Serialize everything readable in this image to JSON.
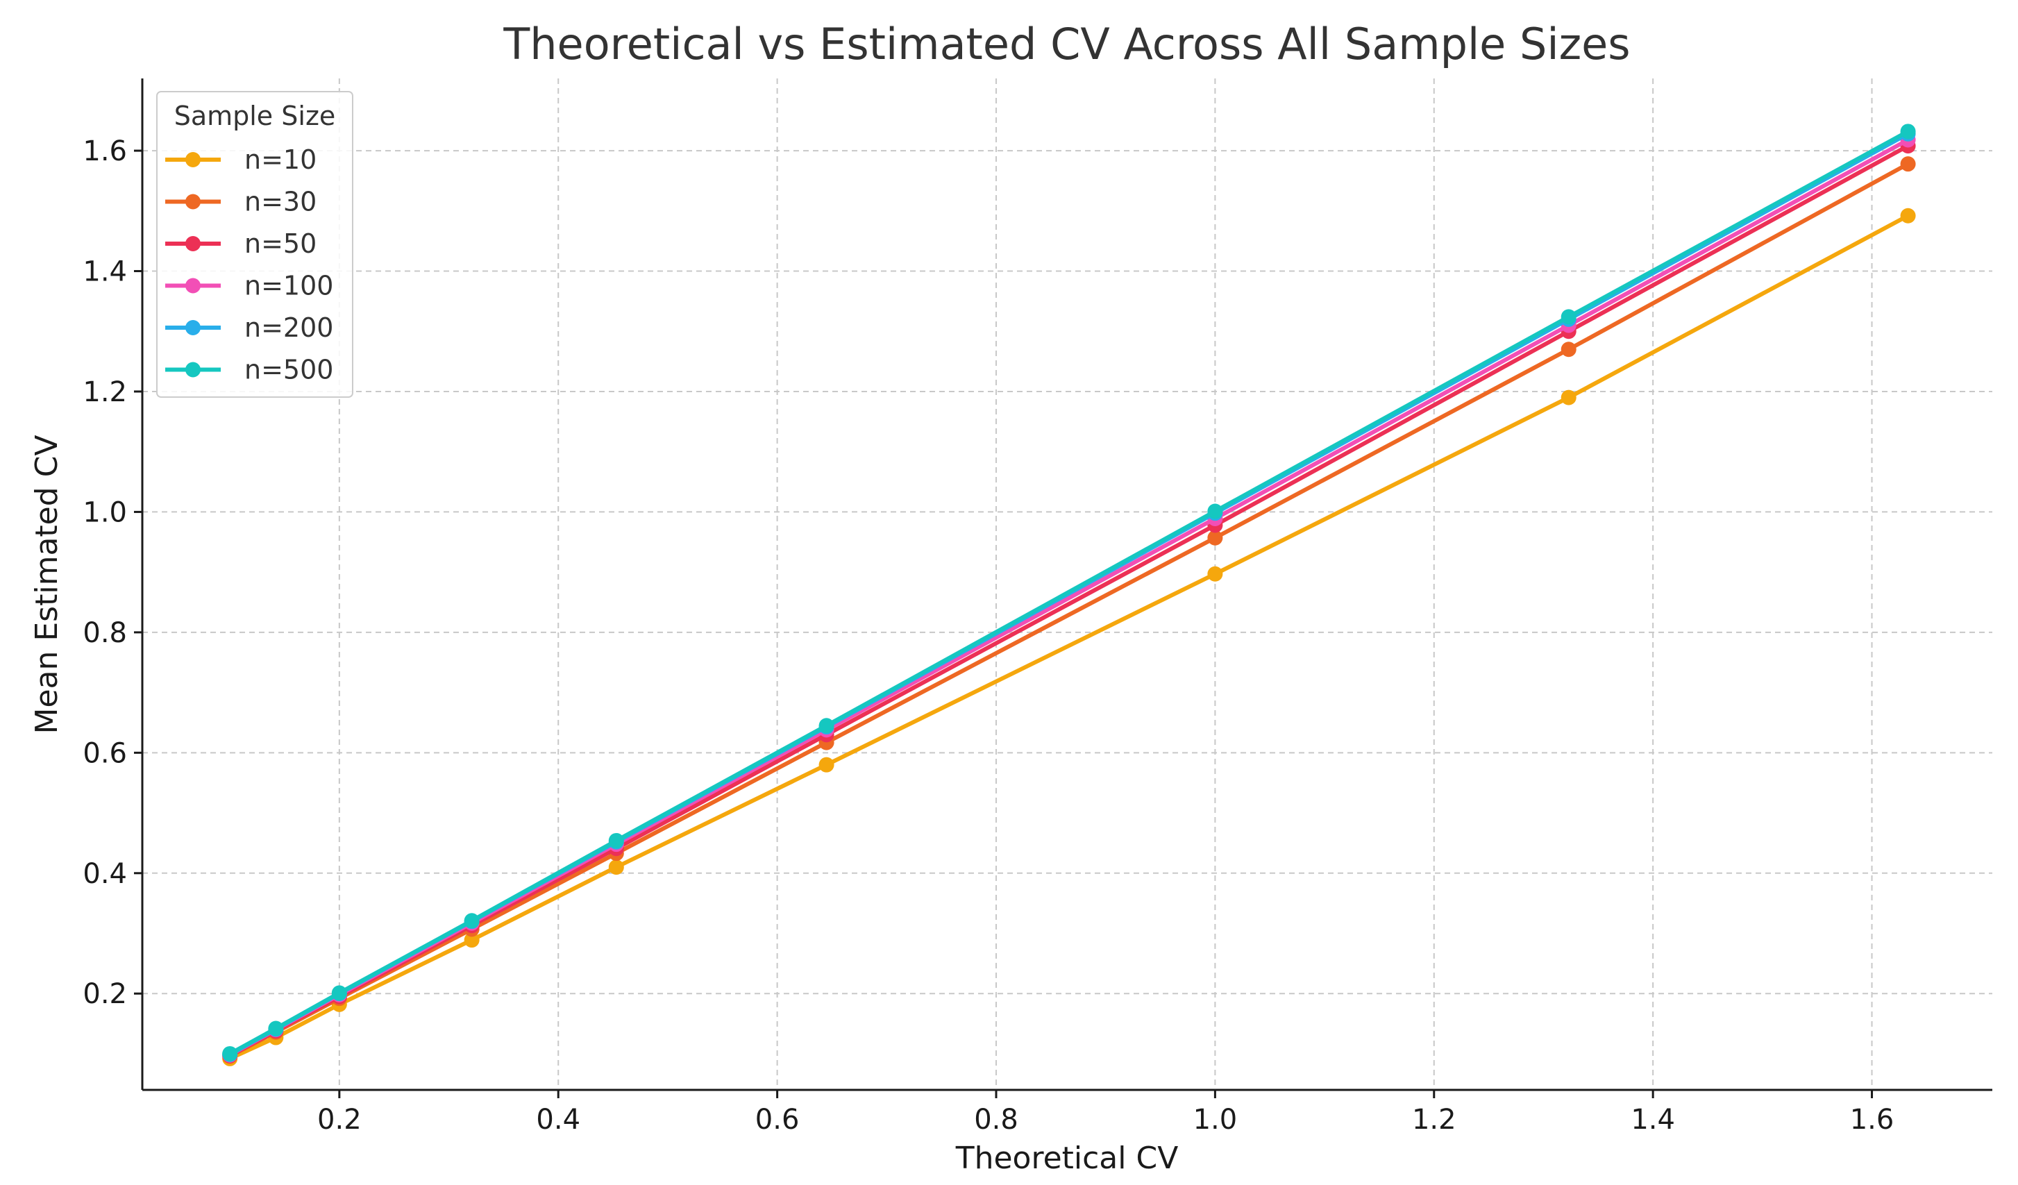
{
  "chart_data": {
    "type": "line",
    "title": "Theoretical vs Estimated CV Across All Sample Sizes",
    "xlabel": "Theoretical CV",
    "ylabel": "Mean Estimated CV",
    "xlim": [
      0.02,
      1.71
    ],
    "ylim": [
      0.04,
      1.72
    ],
    "xticks": [
      0.2,
      0.4,
      0.6,
      0.8,
      1.0,
      1.2,
      1.4,
      1.6
    ],
    "yticks": [
      0.2,
      0.4,
      0.6,
      0.8,
      1.0,
      1.2,
      1.4,
      1.6
    ],
    "tick_labels_x": [
      "0.2",
      "0.4",
      "0.6",
      "0.8",
      "1.0",
      "1.2",
      "1.4",
      "1.6"
    ],
    "tick_labels_y": [
      "0.2",
      "0.4",
      "0.6",
      "0.8",
      "1.0",
      "1.2",
      "1.4",
      "1.6"
    ],
    "grid": true,
    "legend": {
      "title": "Sample Size",
      "position": "top-left"
    },
    "x": [
      0.1,
      0.142,
      0.2,
      0.321,
      0.453,
      0.645,
      1.0,
      1.323,
      1.633
    ],
    "series": [
      {
        "name": "n=10",
        "color": "#F5A70D",
        "values": [
          0.092,
          0.127,
          0.182,
          0.289,
          0.41,
          0.58,
          0.897,
          1.19,
          1.492
        ]
      },
      {
        "name": "n=30",
        "color": "#EE6823",
        "values": [
          0.096,
          0.136,
          0.192,
          0.307,
          0.433,
          0.617,
          0.957,
          1.27,
          1.578
        ]
      },
      {
        "name": "n=50",
        "color": "#EC3055",
        "values": [
          0.097,
          0.138,
          0.195,
          0.313,
          0.441,
          0.63,
          0.978,
          1.3,
          1.608
        ]
      },
      {
        "name": "n=100",
        "color": "#F24FB6",
        "values": [
          0.098,
          0.14,
          0.198,
          0.317,
          0.448,
          0.638,
          0.989,
          1.31,
          1.618
        ]
      },
      {
        "name": "n=200",
        "color": "#29AEEA",
        "values": [
          0.099,
          0.141,
          0.2,
          0.32,
          0.452,
          0.643,
          0.998,
          1.32,
          1.628
        ]
      },
      {
        "name": "n=500",
        "color": "#15C7C0",
        "values": [
          0.1,
          0.142,
          0.201,
          0.321,
          0.454,
          0.645,
          1.001,
          1.324,
          1.632
        ]
      }
    ]
  }
}
